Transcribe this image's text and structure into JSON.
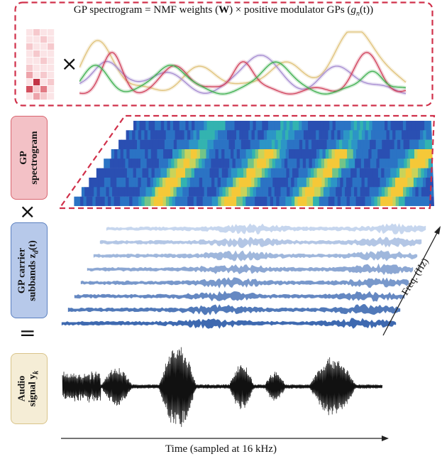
{
  "top_panel": {
    "title": "GP spectrogram = NMF weights (W) × positive modulator GPs (g_n(t))",
    "title_parts": {
      "a": "GP spectrogram",
      "eq": "=",
      "b": "NMF weights (",
      "w": "W",
      "c": ") × positive modulator GPs (",
      "g": "g",
      "n": "n",
      "t": "(t))"
    },
    "multiply_symbol": "×",
    "border_color": "#d0304a"
  },
  "side_labels": {
    "spectrogram": {
      "line1": "GP",
      "line2": "spectrogram",
      "fill": "#f3c1c6",
      "border": "#d9656f"
    },
    "carrier": {
      "line1": "GP carrier",
      "line2": "subbands z",
      "sub": "d",
      "suffix": "(t)",
      "fill": "#b7c9ea",
      "border": "#5b80c0"
    },
    "audio": {
      "line1": "Audio",
      "line2": "signal y",
      "sub": "k",
      "fill": "#f5edd6",
      "border": "#d9c48a"
    }
  },
  "operators": {
    "times": "×",
    "equals": "="
  },
  "axes": {
    "time_label": "Time (sampled at 16 kHz)",
    "freq_label": "Freq. (Hz)"
  },
  "colors": {
    "modulator_curves": [
      "#e0c27a",
      "#a58ad0",
      "#d0405a",
      "#3fb050"
    ],
    "carrier_light": "#c6d6ee",
    "carrier_dark": "#3e69b0",
    "audio": "#111111"
  }
}
